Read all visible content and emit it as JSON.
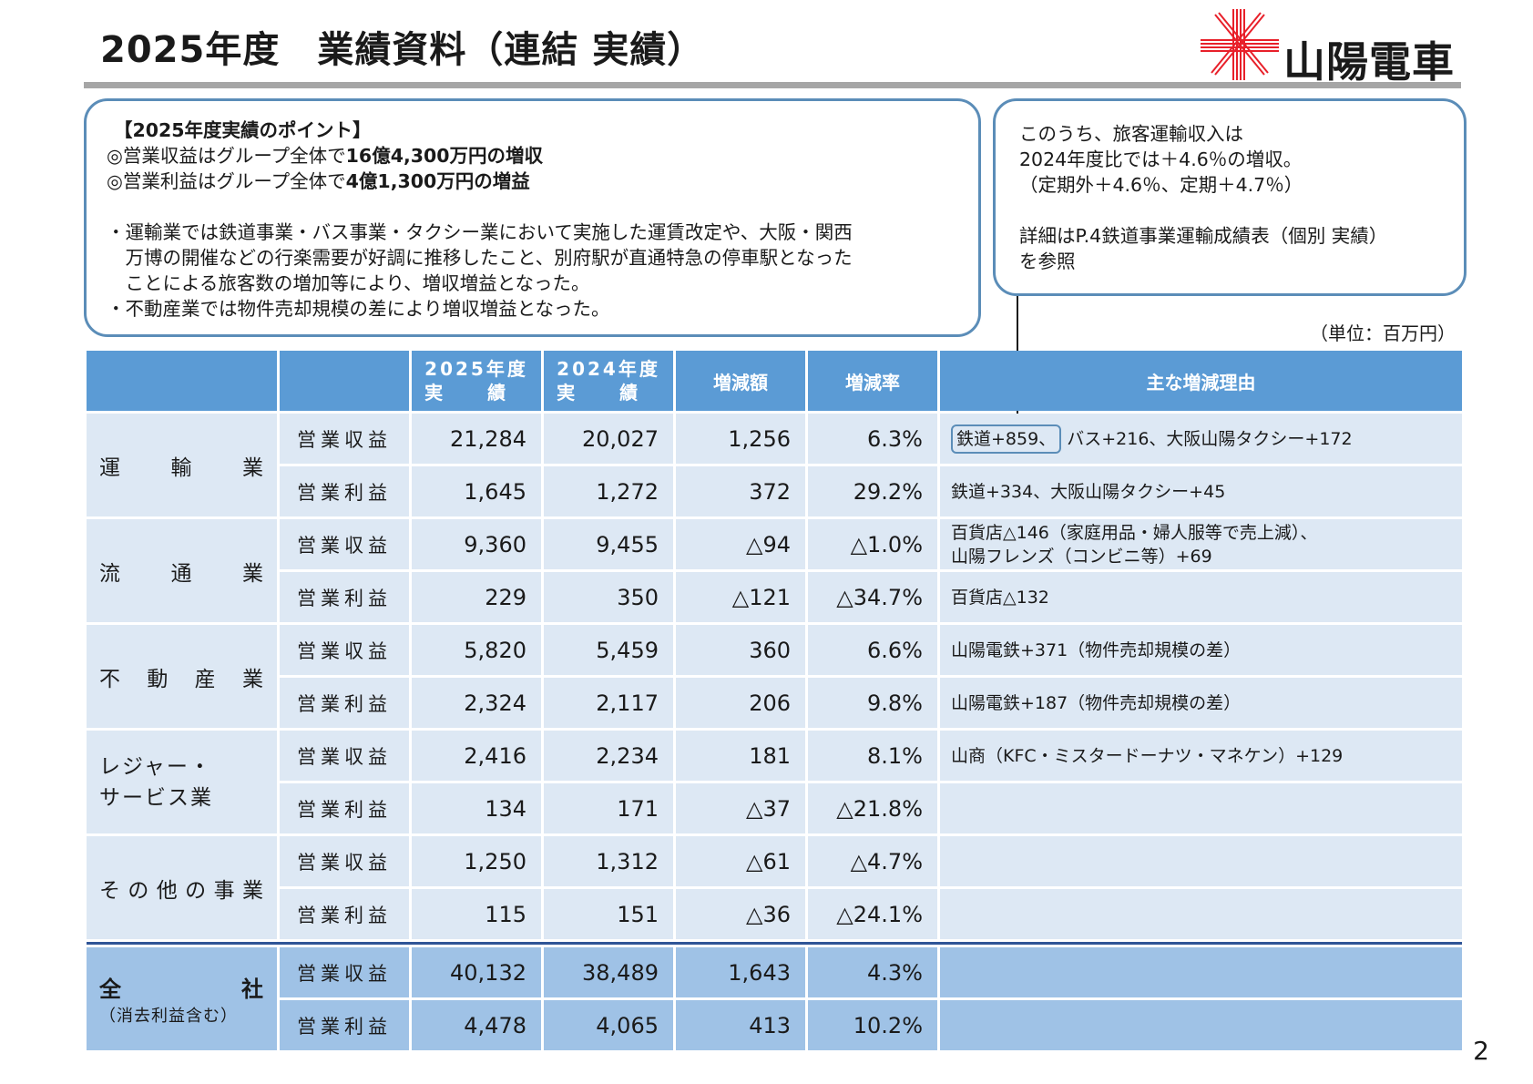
{
  "header": {
    "title": "2025年度　業績資料（連結 実績）",
    "logo_text": "山陽電車",
    "brand_color": "#e8202a"
  },
  "points_box": {
    "heading": "【2025年度実績のポイント】",
    "l1_a": "◎営業収益はグループ全体で",
    "l1_b": "16億4,300万円の増収",
    "l2_a": "◎営業利益はグループ全体で",
    "l2_b": "4億1,300万円の増益",
    "bullets": [
      "・運輸業では鉄道事業・バス事業・タクシー業において実施した運賃改定や、大阪・関西",
      "　万博の開催などの行楽需要が好調に推移したこと、別府駅が直通特急の停車駅となった",
      "　ことによる旅客数の増加等により、増収増益となった。",
      "・不動産業では物件売却規模の差により増収増益となった。"
    ]
  },
  "side_box": {
    "lines": [
      "このうち、旅客運輸収入は",
      "2024年度比では＋4.6％の増収。",
      "（定期外＋4.6％、定期＋4.7％）",
      "",
      "詳細はP.4鉄道事業運輸成績表（個別 実績）",
      "を参照"
    ]
  },
  "unit_label": "（単位：百万円）",
  "table": {
    "headers": {
      "y2025_a": "2025年度",
      "y2025_b": "実　　績",
      "y2024_a": "2024年度",
      "y2024_b": "実　　績",
      "change": "増減額",
      "rate": "増減率",
      "reason": "主な増減理由"
    },
    "segments": [
      {
        "name_chars": [
          "運",
          "輸",
          "業"
        ],
        "rows": [
          {
            "item": "営業収益",
            "y2025": "21,284",
            "y2024": "20,027",
            "change": "1,256",
            "rate": "6.3%",
            "reason_hl": "鉄道+859、",
            "reason": "バス+216、大阪山陽タクシー+172"
          },
          {
            "item": "営業利益",
            "y2025": "1,645",
            "y2024": "1,272",
            "change": "372",
            "rate": "29.2%",
            "reason_hl": "",
            "reason": "鉄道+334、大阪山陽タクシー+45"
          }
        ]
      },
      {
        "name_chars": [
          "流",
          "通",
          "業"
        ],
        "rows": [
          {
            "item": "営業収益",
            "y2025": "9,360",
            "y2024": "9,455",
            "change": "△94",
            "rate": "△1.0%",
            "reason_hl": "",
            "reason": "百貨店△146（家庭用品・婦人服等で売上減）、",
            "reason2": "山陽フレンズ（コンビニ等）+69"
          },
          {
            "item": "営業利益",
            "y2025": "229",
            "y2024": "350",
            "change": "△121",
            "rate": "△34.7%",
            "reason_hl": "",
            "reason": "百貨店△132"
          }
        ]
      },
      {
        "name_chars": [
          "不",
          "動",
          "産",
          "業"
        ],
        "rows": [
          {
            "item": "営業収益",
            "y2025": "5,820",
            "y2024": "5,459",
            "change": "360",
            "rate": "6.6%",
            "reason_hl": "",
            "reason": "山陽電鉄+371（物件売却規模の差）"
          },
          {
            "item": "営業利益",
            "y2025": "2,324",
            "y2024": "2,117",
            "change": "206",
            "rate": "9.8%",
            "reason_hl": "",
            "reason": "山陽電鉄+187（物件売却規模の差）"
          }
        ]
      },
      {
        "name_line1": [
          "レ",
          "ジ",
          "ャ",
          "ー",
          "・"
        ],
        "name_line2": [
          "サ",
          "ー",
          "ビ",
          "ス",
          "業"
        ],
        "rows": [
          {
            "item": "営業収益",
            "y2025": "2,416",
            "y2024": "2,234",
            "change": "181",
            "rate": "8.1%",
            "reason_hl": "",
            "reason": "山商（KFC・ミスタードーナツ・マネケン）+129"
          },
          {
            "item": "営業利益",
            "y2025": "134",
            "y2024": "171",
            "change": "△37",
            "rate": "△21.8%",
            "reason_hl": "",
            "reason": ""
          }
        ]
      },
      {
        "name_chars": [
          "そ",
          "の",
          "他",
          "の",
          "事",
          "業"
        ],
        "rows": [
          {
            "item": "営業収益",
            "y2025": "1,250",
            "y2024": "1,312",
            "change": "△61",
            "rate": "△4.7%",
            "reason_hl": "",
            "reason": ""
          },
          {
            "item": "営業利益",
            "y2025": "115",
            "y2024": "151",
            "change": "△36",
            "rate": "△24.1%",
            "reason_hl": "",
            "reason": ""
          }
        ]
      }
    ],
    "total": {
      "name_chars": [
        "全",
        "社"
      ],
      "sub": "（消去利益含む）",
      "rows": [
        {
          "item": "営業収益",
          "y2025": "40,132",
          "y2024": "38,489",
          "change": "1,643",
          "rate": "4.3%",
          "reason": ""
        },
        {
          "item": "営業利益",
          "y2025": "4,478",
          "y2024": "4,065",
          "change": "413",
          "rate": "10.2%",
          "reason": ""
        }
      ]
    }
  },
  "page_number": "2"
}
